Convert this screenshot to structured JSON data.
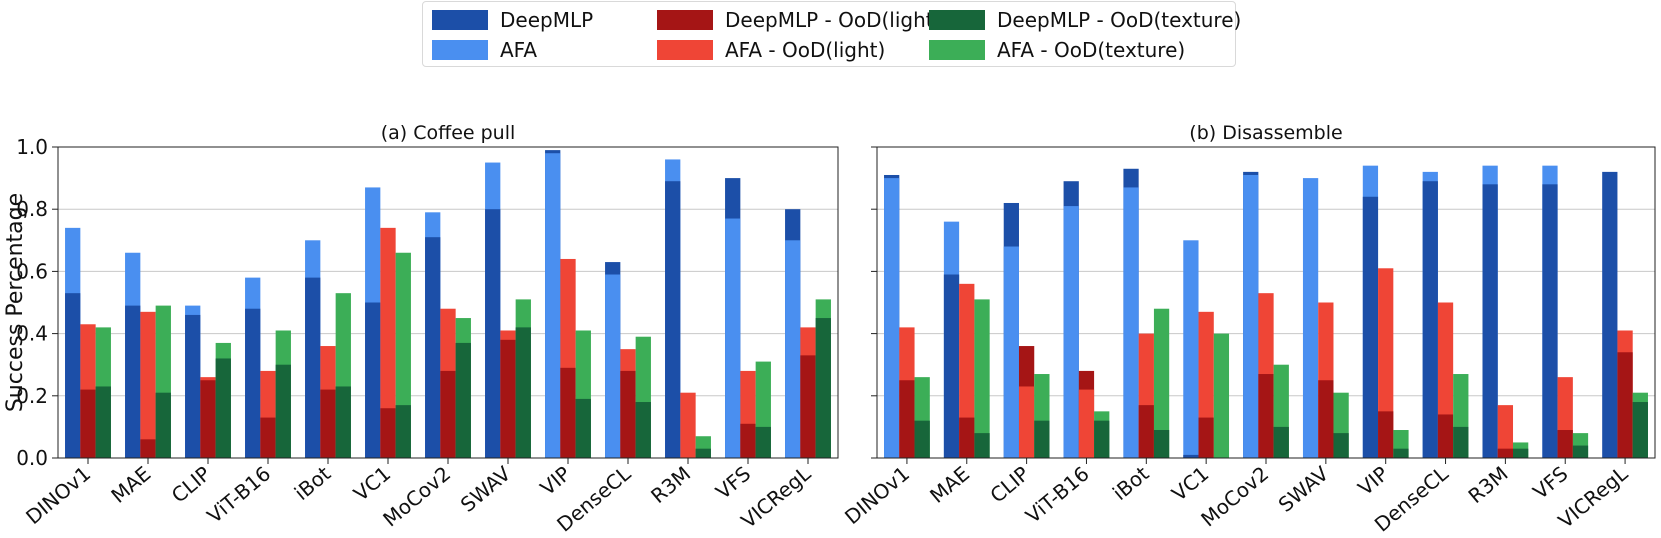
{
  "legend": [
    {
      "label": "DeepMLP",
      "color": "#1c4fa8"
    },
    {
      "label": "AFA",
      "color": "#4a8ff0"
    },
    {
      "label": "DeepMLP - OoD(light)",
      "color": "#a51515"
    },
    {
      "label": "AFA - OoD(light)",
      "color": "#ef4536"
    },
    {
      "label": "DeepMLP - OoD(texture)",
      "color": "#17663a"
    },
    {
      "label": "AFA - OoD(texture)",
      "color": "#3cae57"
    }
  ],
  "chart_data": [
    {
      "type": "bar",
      "title": "(a) Coffee pull",
      "ylabel": "Success Percentage",
      "xlabel": "",
      "ylim": [
        0,
        1.0
      ],
      "yticks": [
        "0.0",
        "0.2",
        "0.4",
        "0.6",
        "0.8",
        "1.0"
      ],
      "grid": "horizontal",
      "categories": [
        "DINOv1",
        "MAE",
        "CLIP",
        "ViT-B16",
        "iBot",
        "VC1",
        "MoCov2",
        "SWAV",
        "VIP",
        "DenseCL",
        "R3M",
        "VFS",
        "VICRegL"
      ],
      "series": [
        {
          "name": "DeepMLP",
          "group": "in-distribution",
          "values": [
            0.53,
            0.49,
            0.46,
            0.48,
            0.58,
            0.5,
            0.71,
            0.8,
            0.99,
            0.63,
            0.89,
            0.9,
            0.8
          ]
        },
        {
          "name": "AFA",
          "group": "in-distribution",
          "values": [
            0.74,
            0.66,
            0.49,
            0.58,
            0.7,
            0.87,
            0.79,
            0.95,
            0.98,
            0.59,
            0.96,
            0.77,
            0.7
          ]
        },
        {
          "name": "DeepMLP - OoD(light)",
          "group": "light",
          "values": [
            0.22,
            0.06,
            0.25,
            0.13,
            0.22,
            0.16,
            0.28,
            0.38,
            0.29,
            0.28,
            0.0,
            0.11,
            0.33
          ]
        },
        {
          "name": "AFA - OoD(light)",
          "group": "light",
          "values": [
            0.43,
            0.47,
            0.26,
            0.28,
            0.36,
            0.74,
            0.48,
            0.41,
            0.64,
            0.35,
            0.21,
            0.28,
            0.42
          ]
        },
        {
          "name": "DeepMLP - OoD(texture)",
          "group": "texture",
          "values": [
            0.23,
            0.21,
            0.32,
            0.3,
            0.23,
            0.17,
            0.37,
            0.42,
            0.19,
            0.18,
            0.03,
            0.1,
            0.45
          ]
        },
        {
          "name": "AFA - OoD(texture)",
          "group": "texture",
          "values": [
            0.42,
            0.49,
            0.37,
            0.41,
            0.53,
            0.66,
            0.45,
            0.51,
            0.41,
            0.39,
            0.07,
            0.31,
            0.51
          ]
        }
      ]
    },
    {
      "type": "bar",
      "title": "(b) Disassemble",
      "ylabel": "",
      "xlabel": "",
      "ylim": [
        0,
        1.0
      ],
      "grid": "horizontal",
      "categories": [
        "DINOv1",
        "MAE",
        "CLIP",
        "ViT-B16",
        "iBot",
        "VC1",
        "MoCov2",
        "SWAV",
        "VIP",
        "DenseCL",
        "R3M",
        "VFS",
        "VICRegL"
      ],
      "series": [
        {
          "name": "DeepMLP",
          "group": "in-distribution",
          "values": [
            0.91,
            0.59,
            0.82,
            0.89,
            0.93,
            0.01,
            0.92,
            0.0,
            0.84,
            0.89,
            0.88,
            0.88,
            0.92
          ]
        },
        {
          "name": "AFA",
          "group": "in-distribution",
          "values": [
            0.9,
            0.76,
            0.68,
            0.81,
            0.87,
            0.7,
            0.91,
            0.9,
            0.94,
            0.92,
            0.94,
            0.94,
            0.0
          ]
        },
        {
          "name": "DeepMLP - OoD(light)",
          "group": "light",
          "values": [
            0.25,
            0.13,
            0.36,
            0.28,
            0.17,
            0.13,
            0.27,
            0.25,
            0.15,
            0.14,
            0.03,
            0.09,
            0.34
          ]
        },
        {
          "name": "AFA - OoD(light)",
          "group": "light",
          "values": [
            0.42,
            0.56,
            0.23,
            0.22,
            0.4,
            0.47,
            0.53,
            0.5,
            0.61,
            0.5,
            0.17,
            0.26,
            0.41
          ]
        },
        {
          "name": "DeepMLP - OoD(texture)",
          "group": "texture",
          "values": [
            0.12,
            0.08,
            0.12,
            0.12,
            0.09,
            0.0,
            0.1,
            0.08,
            0.03,
            0.1,
            0.03,
            0.04,
            0.18
          ]
        },
        {
          "name": "AFA - OoD(texture)",
          "group": "texture",
          "values": [
            0.26,
            0.51,
            0.27,
            0.15,
            0.48,
            0.4,
            0.3,
            0.21,
            0.09,
            0.27,
            0.05,
            0.08,
            0.21
          ]
        }
      ]
    }
  ]
}
